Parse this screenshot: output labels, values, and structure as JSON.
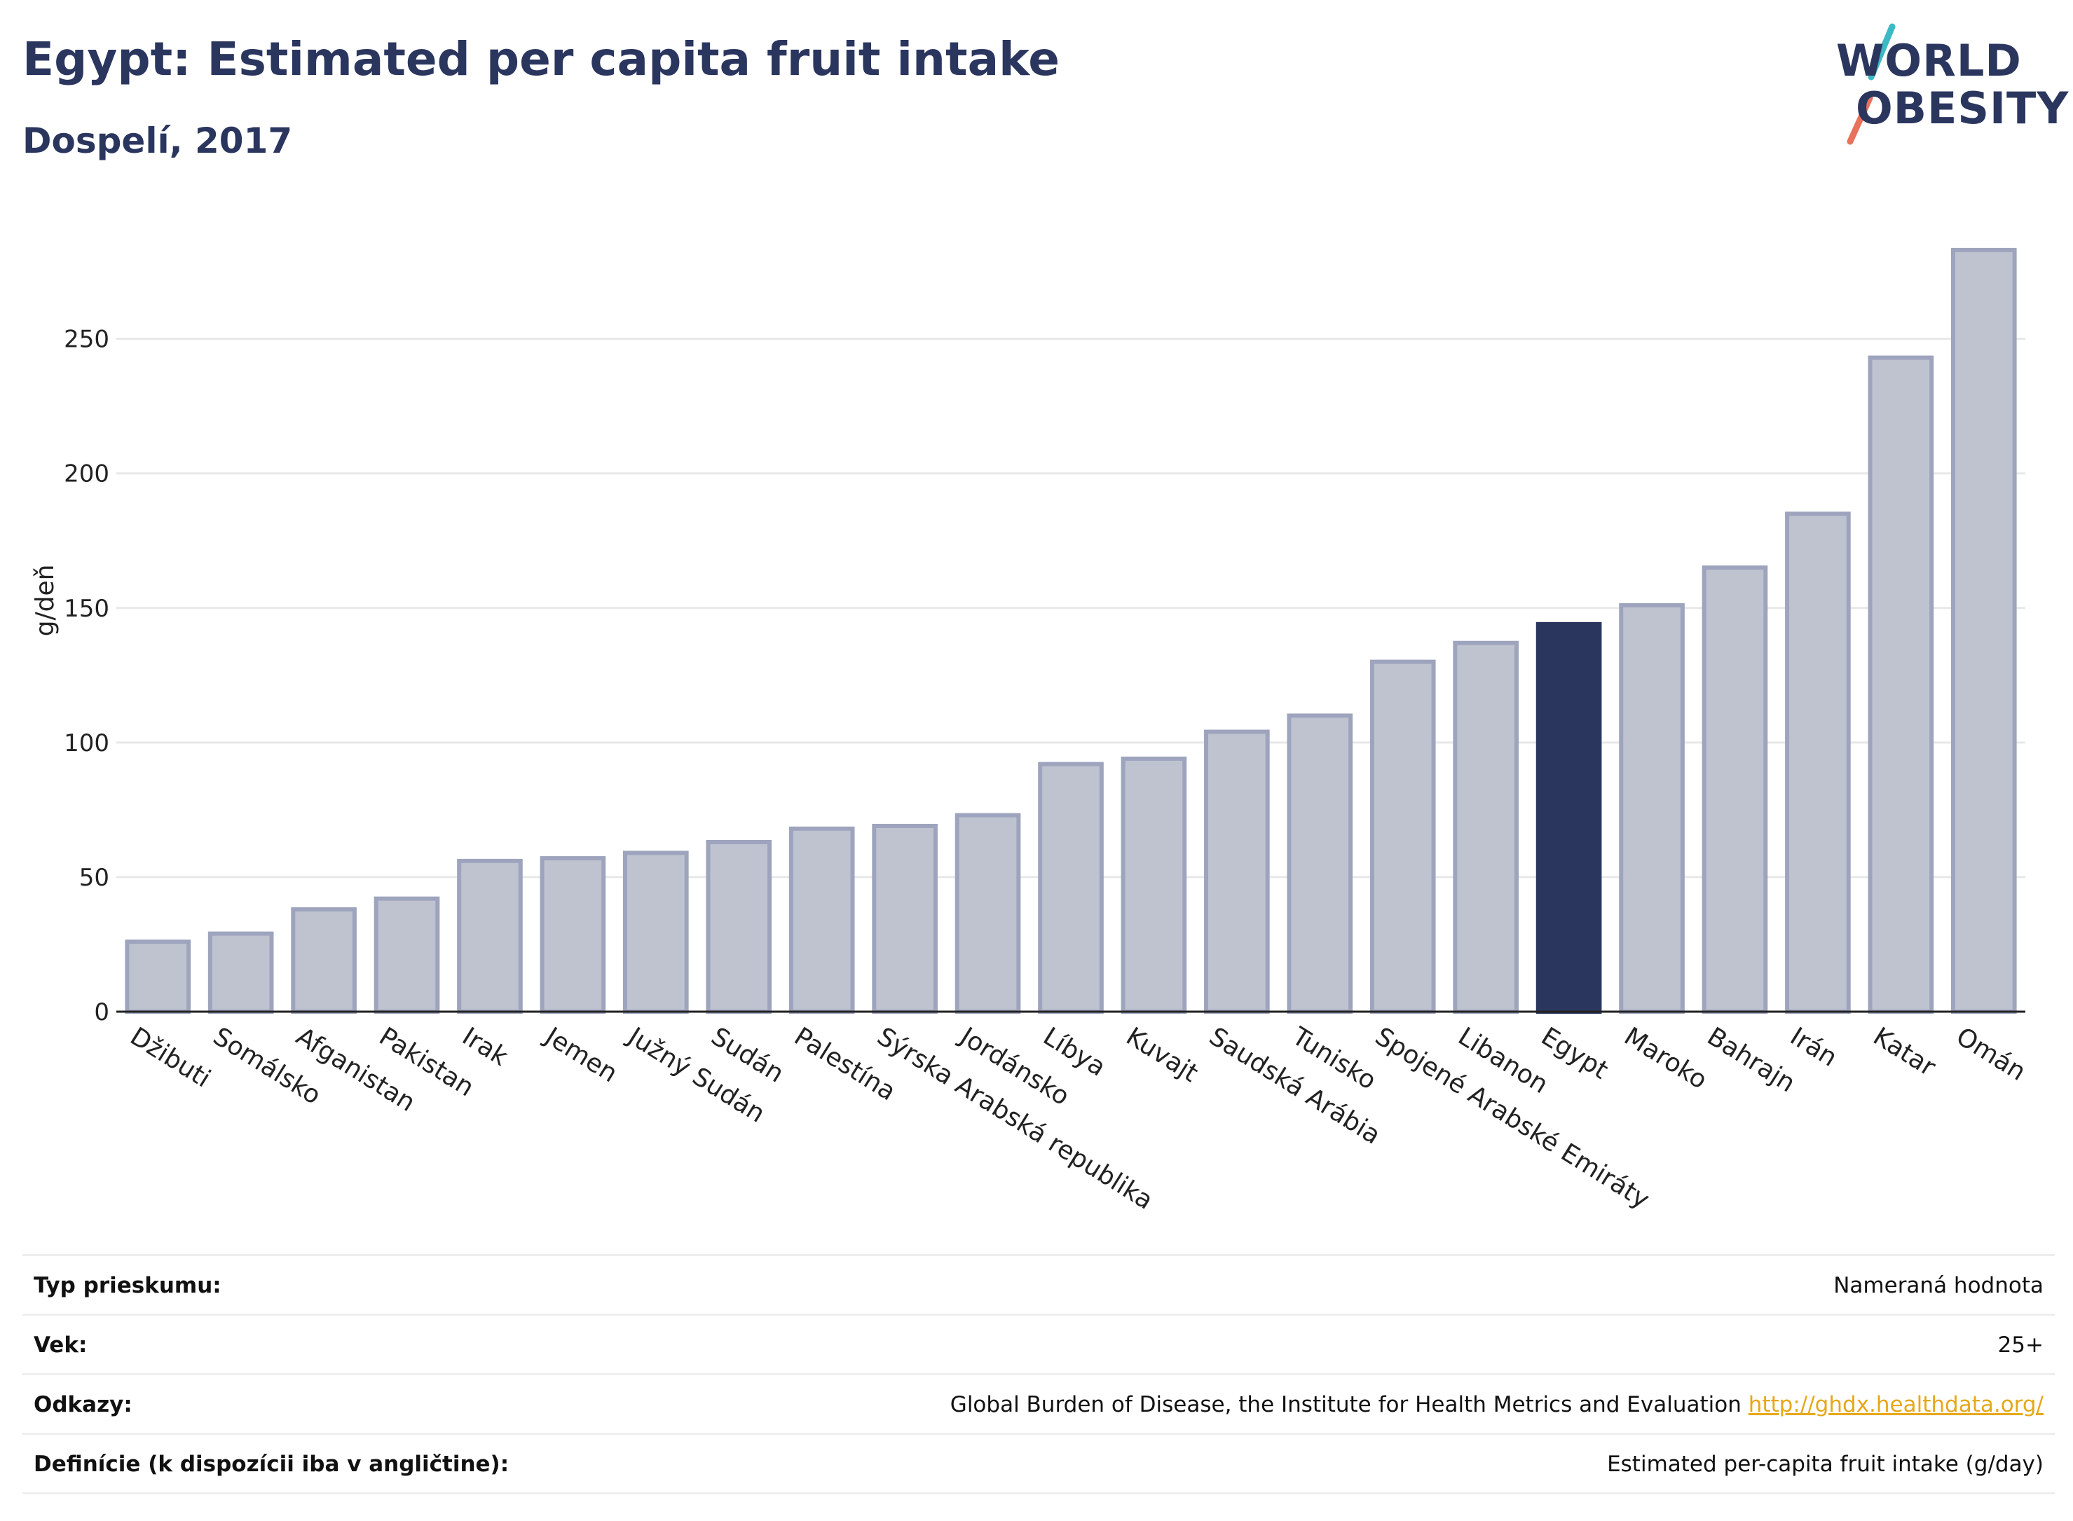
{
  "header": {
    "title": "Egypt: Estimated per capita fruit intake",
    "subtitle": "Dospelí, 2017"
  },
  "logo": {
    "line1": "WORLD",
    "line2": "OBESITY"
  },
  "colors": {
    "bar": "#bfc3d0",
    "bar_border": "#9ea4bd",
    "highlight": "#2b365f",
    "grid": "#e8e8e8",
    "axis": "#222222",
    "logo_teal": "#3bb9c4",
    "logo_coral": "#e8725c"
  },
  "chart_data": {
    "type": "bar",
    "title": "Egypt: Estimated per capita fruit intake",
    "subtitle": "Dospelí, 2017",
    "ylabel": "g/deň",
    "xlabel": "",
    "ylim": [
      0,
      290
    ],
    "yticks": [
      0,
      50,
      100,
      150,
      200,
      250
    ],
    "grid": true,
    "highlight": "Egypt",
    "categories": [
      "Džibuti",
      "Somálsko",
      "Afganistan",
      "Pakistan",
      "Irak",
      "Jemen",
      "Južný Sudán",
      "Sudán",
      "Palestína",
      "Sýrska Arabská republika",
      "Jordánsko",
      "Líbya",
      "Kuvajt",
      "Saudská Arábia",
      "Tunisko",
      "Spojené Arabské Emiráty",
      "Libanon",
      "Egypt",
      "Maroko",
      "Bahrajn",
      "Irán",
      "Katar",
      "Omán"
    ],
    "values": [
      26,
      29,
      38,
      42,
      56,
      57,
      59,
      63,
      68,
      69,
      73,
      92,
      94,
      104,
      110,
      130,
      137,
      144,
      151,
      165,
      185,
      243,
      283
    ]
  },
  "footer": {
    "rows": [
      {
        "label": "Typ prieskumu:",
        "value": "Nameraná hodnota"
      },
      {
        "label": "Vek:",
        "value": "25+"
      },
      {
        "label": "Odkazy:",
        "value": "Global Burden of Disease, the Institute for Health Metrics and Evaluation",
        "link": "http://ghdx.healthdata.org/"
      },
      {
        "label": "Definície (k dispozícii iba v angličtine):",
        "value": "Estimated per-capita fruit intake (g/day)"
      }
    ]
  }
}
